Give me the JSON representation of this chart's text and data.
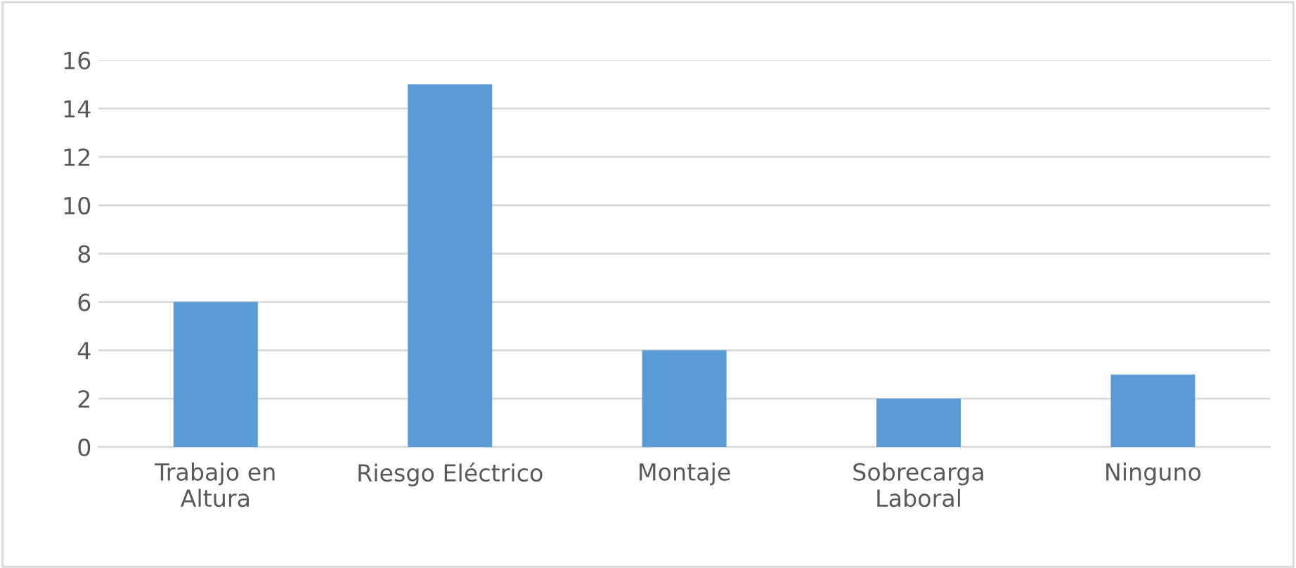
{
  "chart_data": {
    "type": "bar",
    "categories": [
      "Trabajo en\nAltura",
      "Riesgo Eléctrico",
      "Montaje",
      "Sobrecarga\nLaboral",
      "Ninguno"
    ],
    "values": [
      6,
      15,
      4,
      2,
      3
    ],
    "color": "#5b9bd5",
    "ylim": [
      0,
      16
    ],
    "yticks": [
      0,
      2,
      4,
      6,
      8,
      10,
      12,
      14,
      16
    ],
    "grid": "y"
  }
}
